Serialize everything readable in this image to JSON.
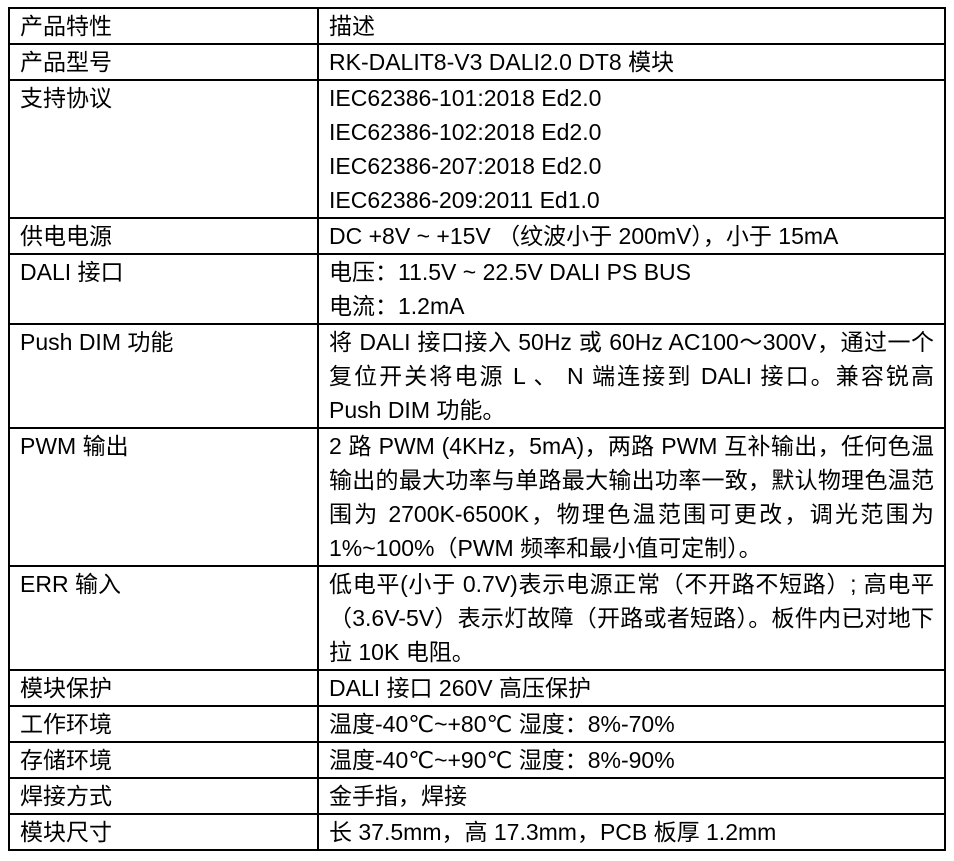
{
  "page": {
    "background_color": "#ffffff",
    "border_color": "#000000",
    "text_color": "#000000"
  },
  "table": {
    "header": {
      "feature": "产品特性",
      "description": "描述"
    },
    "rows": [
      {
        "feature": "产品型号",
        "lines": [
          "RK-DALIT8-V3 DALI2.0 DT8 模块"
        ]
      },
      {
        "feature": "支持协议",
        "lines": [
          "IEC62386-101:2018 Ed2.0",
          "IEC62386-102:2018 Ed2.0",
          "IEC62386-207:2018 Ed2.0",
          "IEC62386-209:2011 Ed1.0"
        ]
      },
      {
        "feature": "供电电源",
        "lines": [
          "DC +8V ~ +15V （纹波小于 200mV），小于 15mA"
        ]
      },
      {
        "feature": "DALI 接口",
        "lines": [
          "电压：11.5V ~ 22.5V DALI PS BUS",
          "电流：1.2mA"
        ]
      },
      {
        "feature": "Push DIM 功能",
        "lines": [
          "将 DALI 接口接入 50Hz 或 60Hz AC100～300V，通过一个复位开关将电源 L 、 N 端连接到 DALI 接口。兼容锐高 Push DIM 功能。"
        ]
      },
      {
        "feature": "PWM 输出",
        "lines": [
          "2 路 PWM (4KHz，5mA)，两路 PWM 互补输出，任何色温输出的最大功率与单路最大输出功率一致，默认物理色温范围为 2700K-6500K，物理色温范围可更改，调光范围为 1%~100%（PWM 频率和最小值可定制）。"
        ]
      },
      {
        "feature": "ERR 输入",
        "lines": [
          "低电平(小于 0.7V)表示电源正常（不开路不短路）; 高电平（3.6V-5V）表示灯故障（开路或者短路）。板件内已对地下拉 10K 电阻。"
        ]
      },
      {
        "feature": "模块保护",
        "lines": [
          "DALI 接口 260V 高压保护"
        ]
      },
      {
        "feature": "工作环境",
        "lines": [
          "温度-40℃~+80℃  湿度：8%-70%"
        ]
      },
      {
        "feature": "存储环境",
        "lines": [
          "温度-40℃~+90℃  湿度：8%-90%"
        ]
      },
      {
        "feature": "焊接方式",
        "lines": [
          "金手指，焊接"
        ]
      },
      {
        "feature": "模块尺寸",
        "lines": [
          "长 37.5mm，高 17.3mm，PCB 板厚 1.2mm"
        ]
      }
    ]
  }
}
